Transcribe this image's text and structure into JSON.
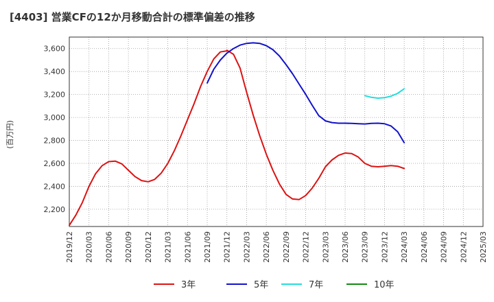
{
  "chart_data": {
    "type": "line",
    "title": "[4403]  営業CFの12か月移動合計の標準偏差の推移",
    "ylabel": "(百万円)",
    "xlabel": "",
    "ylim": [
      2050,
      3700
    ],
    "yticks": [
      2200,
      2400,
      2600,
      2800,
      3000,
      3200,
      3400,
      3600
    ],
    "xrange": [
      "2019-12",
      "2025-03"
    ],
    "xticks": [
      "2019/12",
      "2020/03",
      "2020/06",
      "2020/09",
      "2020/12",
      "2021/03",
      "2021/06",
      "2021/09",
      "2021/12",
      "2022/03",
      "2022/06",
      "2022/09",
      "2022/12",
      "2023/03",
      "2023/06",
      "2023/09",
      "2023/12",
      "2024/03",
      "2024/06",
      "2024/09",
      "2024/12",
      "2025/03"
    ],
    "grid": true,
    "legend_position": "bottom",
    "series": [
      {
        "name": "3年",
        "color": "#dd1111",
        "points": [
          [
            "2019-12",
            2060
          ],
          [
            "2020-01",
            2150
          ],
          [
            "2020-02",
            2260
          ],
          [
            "2020-03",
            2400
          ],
          [
            "2020-04",
            2510
          ],
          [
            "2020-05",
            2580
          ],
          [
            "2020-06",
            2615
          ],
          [
            "2020-07",
            2620
          ],
          [
            "2020-08",
            2595
          ],
          [
            "2020-09",
            2540
          ],
          [
            "2020-10",
            2485
          ],
          [
            "2020-11",
            2450
          ],
          [
            "2020-12",
            2440
          ],
          [
            "2021-01",
            2460
          ],
          [
            "2021-02",
            2515
          ],
          [
            "2021-03",
            2600
          ],
          [
            "2021-04",
            2710
          ],
          [
            "2021-05",
            2840
          ],
          [
            "2021-06",
            2980
          ],
          [
            "2021-07",
            3120
          ],
          [
            "2021-08",
            3270
          ],
          [
            "2021-09",
            3400
          ],
          [
            "2021-10",
            3510
          ],
          [
            "2021-11",
            3570
          ],
          [
            "2021-12",
            3580
          ],
          [
            "2021-12",
            3585
          ],
          [
            "2022-01",
            3550
          ],
          [
            "2022-02",
            3430
          ],
          [
            "2022-03",
            3220
          ],
          [
            "2022-04",
            3020
          ],
          [
            "2022-05",
            2840
          ],
          [
            "2022-06",
            2680
          ],
          [
            "2022-07",
            2540
          ],
          [
            "2022-08",
            2420
          ],
          [
            "2022-09",
            2330
          ],
          [
            "2022-10",
            2290
          ],
          [
            "2022-11",
            2285
          ],
          [
            "2022-12",
            2320
          ],
          [
            "2023-01",
            2385
          ],
          [
            "2023-02",
            2470
          ],
          [
            "2023-03",
            2570
          ],
          [
            "2023-04",
            2630
          ],
          [
            "2023-05",
            2670
          ],
          [
            "2023-06",
            2690
          ],
          [
            "2023-07",
            2685
          ],
          [
            "2023-08",
            2655
          ],
          [
            "2023-09",
            2600
          ],
          [
            "2023-10",
            2575
          ],
          [
            "2023-11",
            2570
          ],
          [
            "2023-12",
            2575
          ],
          [
            "2024-01",
            2580
          ],
          [
            "2024-02",
            2575
          ],
          [
            "2024-03",
            2555
          ]
        ]
      },
      {
        "name": "5年",
        "color": "#1111cc",
        "points": [
          [
            "2021-09",
            3300
          ],
          [
            "2021-10",
            3420
          ],
          [
            "2021-11",
            3500
          ],
          [
            "2021-12",
            3560
          ],
          [
            "2022-01",
            3600
          ],
          [
            "2022-02",
            3630
          ],
          [
            "2022-03",
            3645
          ],
          [
            "2022-04",
            3650
          ],
          [
            "2022-05",
            3645
          ],
          [
            "2022-06",
            3625
          ],
          [
            "2022-07",
            3590
          ],
          [
            "2022-08",
            3535
          ],
          [
            "2022-09",
            3460
          ],
          [
            "2022-10",
            3380
          ],
          [
            "2022-11",
            3290
          ],
          [
            "2022-12",
            3200
          ],
          [
            "2023-01",
            3105
          ],
          [
            "2023-02",
            3015
          ],
          [
            "2023-03",
            2970
          ],
          [
            "2023-04",
            2955
          ],
          [
            "2023-05",
            2950
          ],
          [
            "2023-06",
            2950
          ],
          [
            "2023-07",
            2948
          ],
          [
            "2023-08",
            2945
          ],
          [
            "2023-09",
            2943
          ],
          [
            "2023-10",
            2948
          ],
          [
            "2023-11",
            2950
          ],
          [
            "2023-12",
            2945
          ],
          [
            "2024-01",
            2925
          ],
          [
            "2024-02",
            2875
          ],
          [
            "2024-03",
            2780
          ]
        ]
      },
      {
        "name": "7年",
        "color": "#22dddd",
        "points": [
          [
            "2023-09",
            3190
          ],
          [
            "2023-10",
            3175
          ],
          [
            "2023-11",
            3168
          ],
          [
            "2023-12",
            3172
          ],
          [
            "2024-01",
            3185
          ],
          [
            "2024-02",
            3210
          ],
          [
            "2024-03",
            3250
          ]
        ]
      },
      {
        "name": "10年",
        "color": "#118811",
        "points": []
      }
    ]
  }
}
